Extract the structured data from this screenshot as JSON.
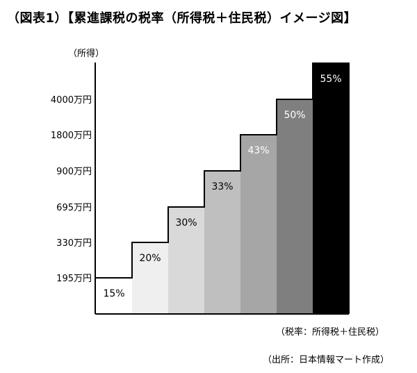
{
  "title": "（図表1）【累進課税の税率（所得税＋住民税）イメージ図】",
  "note_rate": "（税率：所得税＋住民税）",
  "note_source": "（出所：日本情報マート作成）",
  "chart_data": {
    "type": "bar",
    "ylabel": "（所得）",
    "xlabel": "",
    "y_ticks": [
      "195万円",
      "330万円",
      "695万円",
      "900万円",
      "1800万円",
      "4000万円"
    ],
    "categories": [
      "15%",
      "20%",
      "30%",
      "33%",
      "43%",
      "50%",
      "55%"
    ],
    "values": [
      15,
      20,
      30,
      33,
      43,
      50,
      55
    ],
    "colors": [
      "#ffffff",
      "#efefef",
      "#d9d9d9",
      "#bfbfbf",
      "#a6a6a6",
      "#7f7f7f",
      "#000000"
    ],
    "label_colors": [
      "#000000",
      "#000000",
      "#000000",
      "#000000",
      "#ffffff",
      "#ffffff",
      "#ffffff"
    ],
    "grid": false
  }
}
